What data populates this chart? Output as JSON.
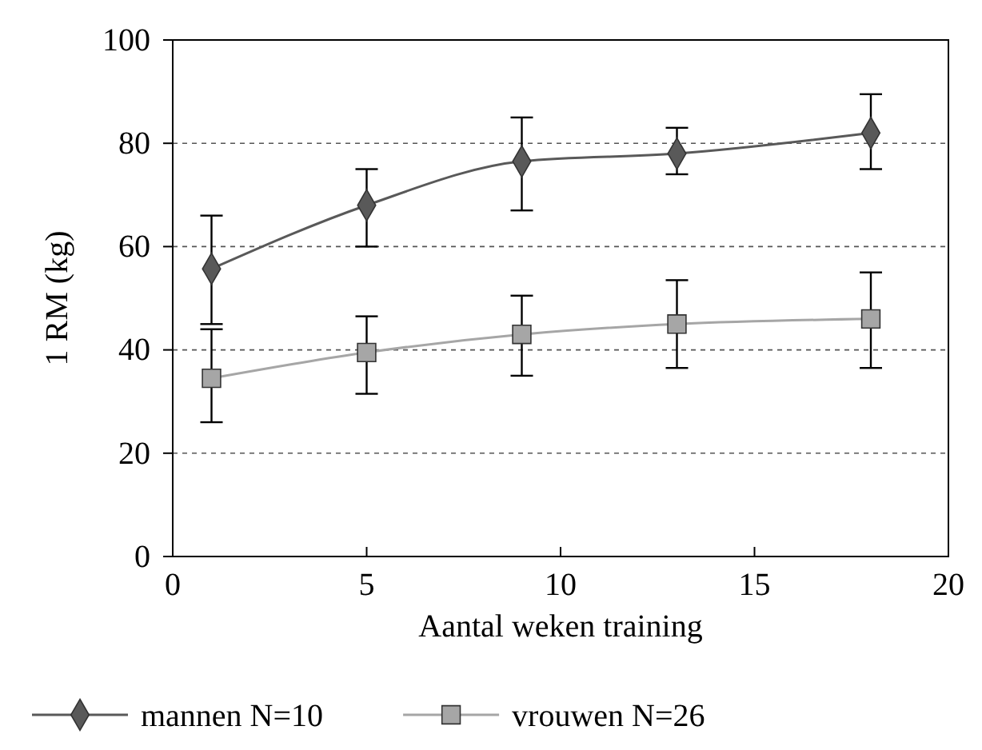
{
  "chart_data": {
    "type": "line",
    "xlabel": "Aantal weken training",
    "ylabel": "1 RM (kg)",
    "x": [
      1,
      5,
      9,
      13,
      18
    ],
    "series": [
      {
        "name": "mannen N=10",
        "color": "#595959",
        "marker": "diamond",
        "values": [
          55.7,
          68,
          76.5,
          78,
          82
        ],
        "errors": [
          [
            45,
            66
          ],
          [
            60,
            75
          ],
          [
            67,
            85
          ],
          [
            74,
            83
          ],
          [
            75,
            89.5
          ]
        ]
      },
      {
        "name": "vrouwen N=26",
        "color": "#a6a6a6",
        "marker": "square",
        "values": [
          34.5,
          39.5,
          43,
          45,
          46
        ],
        "errors": [
          [
            26,
            44
          ],
          [
            31.5,
            46.5
          ],
          [
            35,
            50.5
          ],
          [
            36.5,
            53.5
          ],
          [
            36.5,
            55
          ]
        ]
      }
    ],
    "xlim": [
      0,
      20
    ],
    "xticks": [
      0,
      5,
      10,
      15,
      20
    ],
    "ylim": [
      0,
      100
    ],
    "yticks": [
      0,
      20,
      40,
      60,
      80,
      100
    ],
    "grid": "y",
    "legend": "bottom"
  }
}
